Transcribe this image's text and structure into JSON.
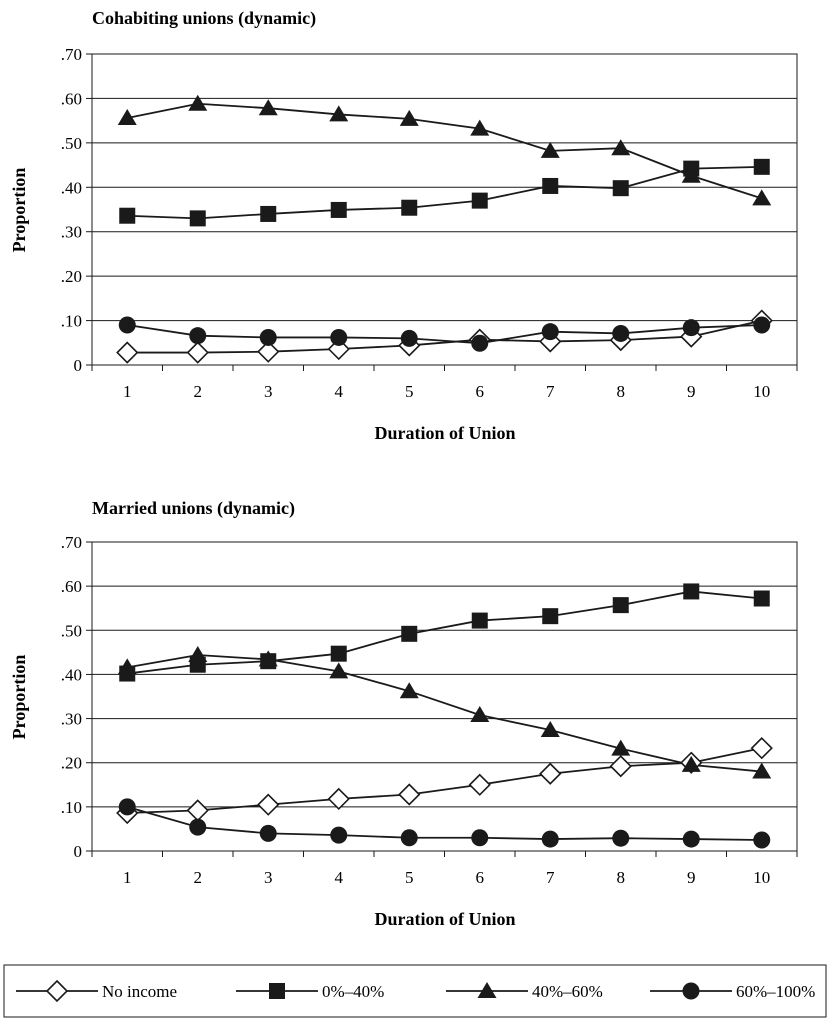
{
  "chart_data": [
    {
      "type": "line",
      "title": "Cohabiting unions (dynamic)",
      "xlabel": "Duration of Union",
      "ylabel": "Proportion",
      "categories": [
        "1",
        "2",
        "3",
        "4",
        "5",
        "6",
        "7",
        "8",
        "9",
        "10"
      ],
      "ylim": [
        0,
        0.7
      ],
      "yticks": [
        0,
        0.1,
        0.2,
        0.3,
        0.4,
        0.5,
        0.6,
        0.7
      ],
      "ytick_labels": [
        "0",
        ".10",
        ".20",
        ".30",
        ".40",
        ".50",
        ".60",
        ".70"
      ],
      "grid": "horizontal",
      "series": [
        {
          "name": "No income",
          "marker": "diamond-open",
          "values": [
            0.028,
            0.028,
            0.03,
            0.036,
            0.044,
            0.057,
            0.053,
            0.056,
            0.064,
            0.1
          ]
        },
        {
          "name": "0%–40%",
          "marker": "square",
          "values": [
            0.336,
            0.33,
            0.34,
            0.349,
            0.354,
            0.37,
            0.403,
            0.398,
            0.442,
            0.446
          ]
        },
        {
          "name": "40%–60%",
          "marker": "triangle",
          "values": [
            0.556,
            0.588,
            0.578,
            0.564,
            0.554,
            0.532,
            0.482,
            0.488,
            0.426,
            0.375
          ]
        },
        {
          "name": "60%–100%",
          "marker": "circle",
          "values": [
            0.09,
            0.066,
            0.062,
            0.062,
            0.06,
            0.049,
            0.075,
            0.071,
            0.084,
            0.09
          ]
        }
      ]
    },
    {
      "type": "line",
      "title": "Married unions (dynamic)",
      "xlabel": "Duration of Union",
      "ylabel": "Proportion",
      "categories": [
        "1",
        "2",
        "3",
        "4",
        "5",
        "6",
        "7",
        "8",
        "9",
        "10"
      ],
      "ylim": [
        0,
        0.7
      ],
      "yticks": [
        0,
        0.1,
        0.2,
        0.3,
        0.4,
        0.5,
        0.6,
        0.7
      ],
      "ytick_labels": [
        "0",
        ".10",
        ".20",
        ".30",
        ".40",
        ".50",
        ".60",
        ".70"
      ],
      "grid": "horizontal",
      "series": [
        {
          "name": "No income",
          "marker": "diamond-open",
          "values": [
            0.086,
            0.092,
            0.105,
            0.118,
            0.128,
            0.15,
            0.175,
            0.192,
            0.2,
            0.233
          ]
        },
        {
          "name": "0%–40%",
          "marker": "square",
          "values": [
            0.402,
            0.422,
            0.43,
            0.447,
            0.492,
            0.522,
            0.532,
            0.557,
            0.588,
            0.572
          ]
        },
        {
          "name": "40%–60%",
          "marker": "triangle",
          "values": [
            0.416,
            0.444,
            0.434,
            0.407,
            0.362,
            0.308,
            0.274,
            0.232,
            0.195,
            0.18
          ]
        },
        {
          "name": "60%–100%",
          "marker": "circle",
          "values": [
            0.1,
            0.054,
            0.04,
            0.036,
            0.03,
            0.03,
            0.027,
            0.029,
            0.027,
            0.025
          ]
        }
      ]
    }
  ],
  "legend": {
    "placement": "bottom",
    "items": [
      {
        "label": "No income",
        "marker": "diamond-open"
      },
      {
        "label": "0%–40%",
        "marker": "square"
      },
      {
        "label": "40%–60%",
        "marker": "triangle"
      },
      {
        "label": "60%–100%",
        "marker": "circle"
      }
    ]
  },
  "colors": {
    "line": "#1a1a1a",
    "grid": "#1a1a1a",
    "background": "#ffffff"
  }
}
